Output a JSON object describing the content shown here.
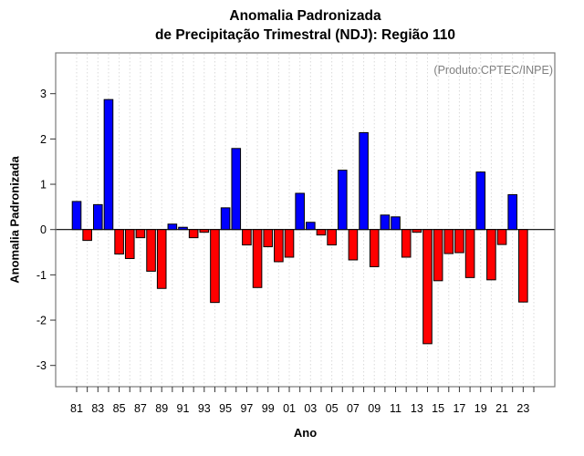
{
  "chart_data": {
    "type": "bar",
    "title_line1": "Anomalia Padronizada",
    "title_line2": "de Precipitação Trimestral (NDJ): Região 110",
    "annotation": "(Produto:CPTEC/INPE)",
    "xlabel": "Ano",
    "ylabel": "Anomalia Padronizada",
    "categories": [
      1981,
      1982,
      1983,
      1984,
      1985,
      1986,
      1987,
      1988,
      1989,
      1990,
      1991,
      1992,
      1993,
      1994,
      1995,
      1996,
      1997,
      1998,
      1999,
      2000,
      2001,
      2002,
      2003,
      2004,
      2005,
      2006,
      2007,
      2008,
      2009,
      2010,
      2011,
      2012,
      2013,
      2014,
      2015,
      2016,
      2017,
      2018,
      2019,
      2020,
      2021,
      2022,
      2023
    ],
    "values": [
      0.62,
      -0.24,
      0.55,
      2.87,
      -0.54,
      -0.64,
      -0.18,
      -0.92,
      -1.3,
      0.12,
      0.05,
      -0.18,
      -0.06,
      -1.61,
      0.48,
      1.79,
      -0.34,
      -1.28,
      -0.38,
      -0.71,
      -0.61,
      0.8,
      0.16,
      -0.12,
      -0.34,
      1.31,
      -0.67,
      2.14,
      -0.82,
      0.32,
      0.28,
      -0.61,
      -0.06,
      -2.52,
      -1.13,
      -0.53,
      -0.51,
      -1.06,
      1.27,
      -1.11,
      -0.33,
      0.77,
      -1.6
    ],
    "x_axis": {
      "first_tick_year": 1981,
      "last_tick_year": 2024,
      "labeled_ticks": [
        "81",
        "83",
        "85",
        "87",
        "89",
        "91",
        "93",
        "95",
        "97",
        "99",
        "01",
        "03",
        "05",
        "07",
        "09",
        "11",
        "13",
        "15",
        "17",
        "19",
        "21",
        "23"
      ]
    },
    "y_axis": {
      "ticks": [
        3,
        2,
        1,
        0,
        -1,
        -2,
        -3
      ],
      "ylim": [
        -3.45,
        3.9
      ]
    },
    "grid": "vertical-dotted",
    "legend": "none",
    "colors": {
      "positive": "#0000ff",
      "negative": "#ff0000",
      "bar_border": "#000000",
      "grid": "#dadada",
      "frame": "#7a7a7a",
      "tick": "#333333",
      "zero_line": "#000000",
      "annotation_text": "#7f7f7f",
      "title_text": "#000000"
    }
  }
}
